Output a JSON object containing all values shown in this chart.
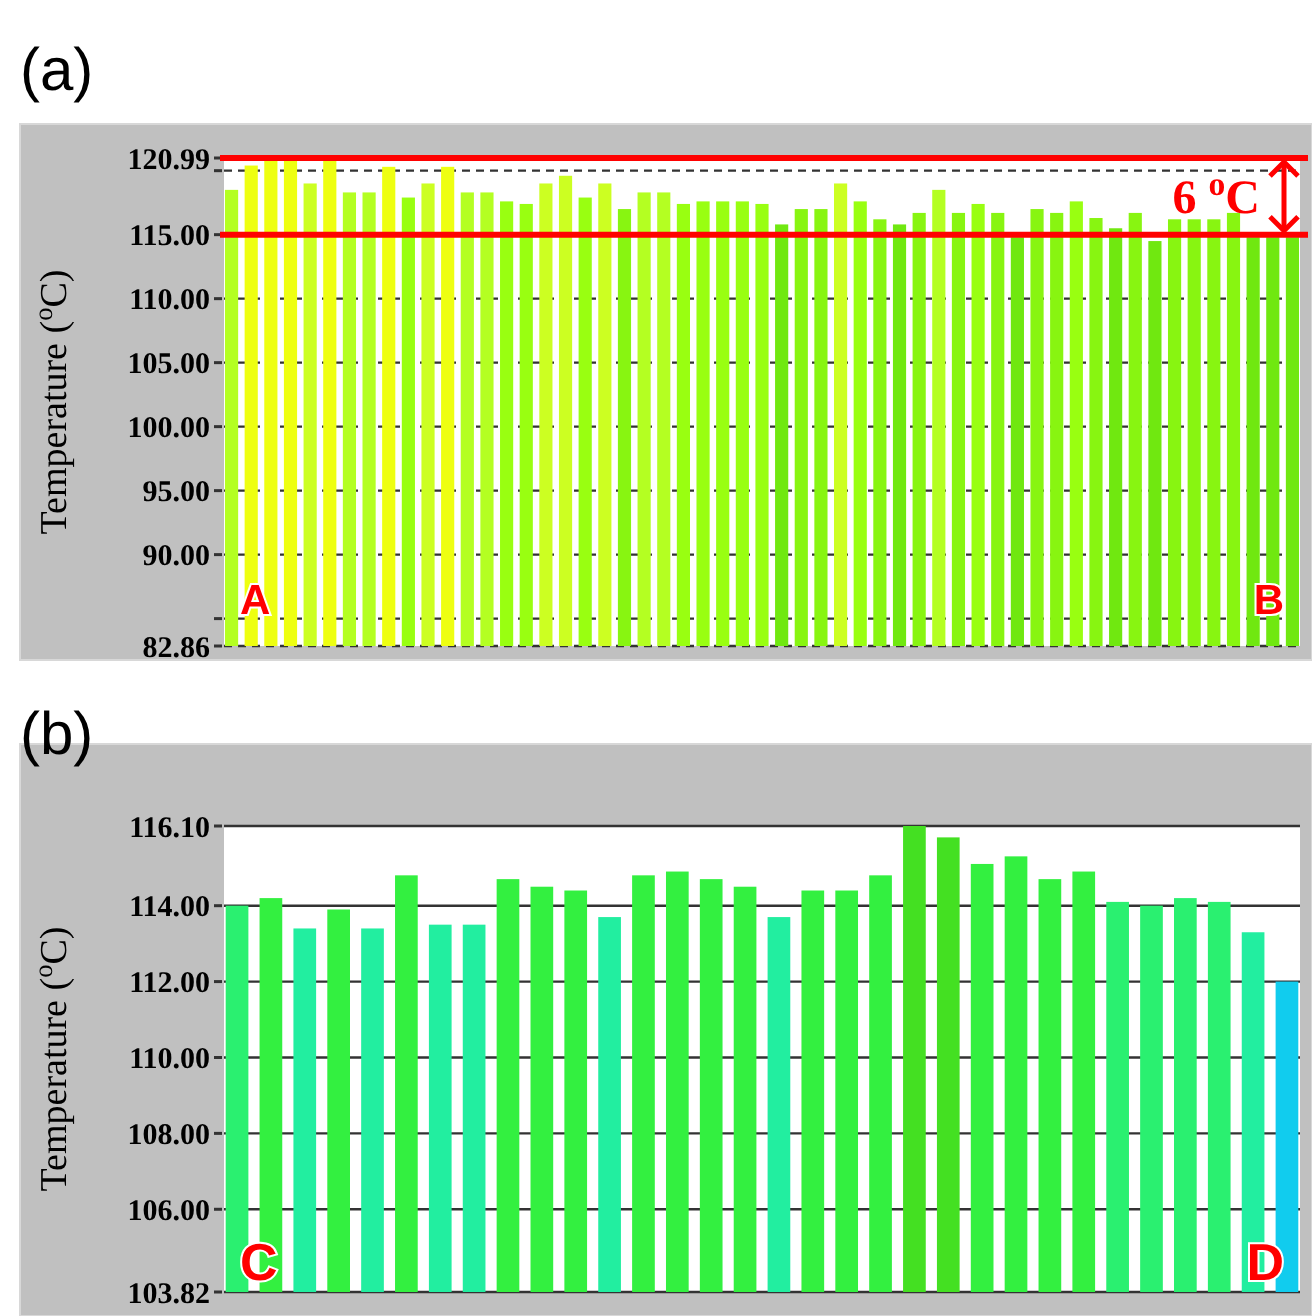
{
  "chart_data": [
    {
      "type": "bar",
      "title": "(a)",
      "ylabel": "Temperature ($^{o}$C)",
      "categories": [
        null,
        null,
        null,
        null,
        null,
        null,
        null,
        null,
        null,
        null,
        null,
        null,
        null,
        null,
        null,
        null,
        null,
        null,
        null,
        null,
        null,
        null,
        null,
        null,
        null,
        null,
        null,
        null,
        null,
        null,
        null,
        null,
        null,
        null,
        null,
        null,
        null,
        null,
        null,
        null,
        null,
        null,
        null,
        null,
        null,
        null,
        null,
        null,
        null,
        null,
        null,
        null,
        null,
        null,
        null
      ],
      "values": [
        118.5,
        120.4,
        120.9,
        120.8,
        119.0,
        120.8,
        118.3,
        118.3,
        120.3,
        117.9,
        119.0,
        120.3,
        118.3,
        118.3,
        117.6,
        117.4,
        119.0,
        119.6,
        117.9,
        119.0,
        117.0,
        118.3,
        118.3,
        117.4,
        117.6,
        117.6,
        117.6,
        117.4,
        115.8,
        117.0,
        117.0,
        119.0,
        117.6,
        116.2,
        115.8,
        116.7,
        118.5,
        116.7,
        117.4,
        116.7,
        114.8,
        117.0,
        116.7,
        117.6,
        116.3,
        115.5,
        116.7,
        114.5,
        116.2,
        116.2,
        116.2,
        116.7,
        114.8,
        114.8,
        114.8
      ],
      "colors": [
        "#b4ff22",
        "#eeff11",
        "#eeff11",
        "#eeff11",
        "#ccff22",
        "#eeff11",
        "#b4ff22",
        "#b4ff22",
        "#eeff11",
        "#99ff11",
        "#ccff22",
        "#eeff11",
        "#b4ff22",
        "#b4ff22",
        "#99ff11",
        "#99ff11",
        "#ccff22",
        "#ccff22",
        "#99ff11",
        "#ccff22",
        "#88f511",
        "#b4ff22",
        "#b4ff22",
        "#99ff11",
        "#99ff11",
        "#99ff11",
        "#99ff11",
        "#99ff11",
        "#70e810",
        "#88f511",
        "#88f511",
        "#ccff22",
        "#99ff11",
        "#88f511",
        "#70e810",
        "#88f511",
        "#b4ff22",
        "#88f511",
        "#99ff11",
        "#88f511",
        "#70e810",
        "#88f511",
        "#88f511",
        "#99ff11",
        "#88f511",
        "#70e810",
        "#88f511",
        "#70e810",
        "#88f511",
        "#88f511",
        "#88f511",
        "#88f511",
        "#70e810",
        "#70e810",
        "#70e810"
      ],
      "ylim": [
        82.86,
        120.99
      ],
      "yticks": [
        82.86,
        {
          "value": 85,
          "label": null
        },
        {
          "value": 90,
          "label": "90.00"
        },
        {
          "value": 95,
          "label": "95.00"
        },
        {
          "value": 100,
          "label": "100.00"
        },
        {
          "value": 105,
          "label": "105.00"
        },
        {
          "value": 110,
          "label": "110.00"
        },
        {
          "value": 115,
          "label": "115.00"
        },
        {
          "value": 120,
          "label": null
        },
        120.99
      ],
      "grid": "y",
      "line_style": "dashed",
      "ref_lines": [
        {
          "axis": "y",
          "value": 120.99,
          "label": null,
          "color": "#ff0000"
        },
        {
          "axis": "y",
          "value": 115,
          "label": null,
          "color": "#ff0000"
        }
      ],
      "annotations": [
        "6 $^{o}$C",
        "A",
        "B"
      ]
    },
    {
      "type": "bar",
      "title": "(b)",
      "ylabel": "Temperature ($^{o}$C)",
      "categories": [
        null,
        null,
        null,
        null,
        null,
        null,
        null,
        null,
        null,
        null,
        null,
        null,
        null,
        null,
        null,
        null,
        null,
        null,
        null,
        null,
        null,
        null,
        null,
        null,
        null,
        null,
        null,
        null,
        null,
        null,
        null,
        null
      ],
      "values": [
        114.0,
        114.2,
        113.4,
        113.9,
        113.4,
        114.8,
        113.5,
        113.5,
        114.7,
        114.5,
        114.4,
        113.7,
        114.8,
        114.9,
        114.7,
        114.5,
        113.7,
        114.4,
        114.4,
        114.8,
        116.1,
        115.8,
        115.1,
        115.3,
        114.7,
        114.9,
        114.1,
        114.0,
        114.2,
        114.1,
        113.3,
        112.0
      ],
      "colors": [
        "#2af070",
        "#33f040",
        "#22eea0",
        "#33f040",
        "#22eea0",
        "#33f040",
        "#22eea0",
        "#22eea0",
        "#33f040",
        "#33f040",
        "#33f040",
        "#22eea0",
        "#33f040",
        "#33f040",
        "#33f040",
        "#33f040",
        "#22eea0",
        "#33f040",
        "#33f040",
        "#33f040",
        "#44e022",
        "#44e022",
        "#33f040",
        "#33f040",
        "#33f040",
        "#33f040",
        "#2af070",
        "#2af070",
        "#2af070",
        "#2af070",
        "#22eea0",
        "#11ccee"
      ],
      "ylim": [
        103.82,
        116.1
      ],
      "yticks": [
        103.82,
        {
          "value": 106,
          "label": "106.00"
        },
        {
          "value": 108,
          "label": "108.00"
        },
        {
          "value": 110,
          "label": "110.00"
        },
        {
          "value": 112,
          "label": "112.00"
        },
        {
          "value": 114,
          "label": "114.00"
        },
        {
          "value": 116.1,
          "label": "116.10"
        }
      ],
      "grid": "y",
      "line_style": "solid",
      "annotations": [
        "C",
        "D"
      ]
    }
  ]
}
